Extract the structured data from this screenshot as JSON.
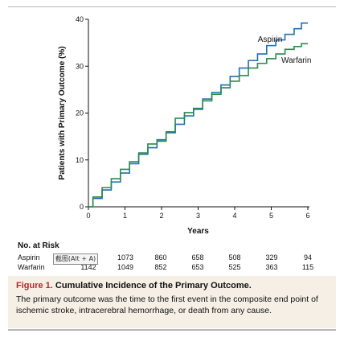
{
  "chart_data": {
    "type": "line",
    "xlabel": "Years",
    "ylabel": "Patients with Primary Outcome (%)",
    "xlim": [
      0,
      6
    ],
    "ylim": [
      0,
      40
    ],
    "x_ticks": [
      0,
      1,
      2,
      3,
      4,
      5,
      6
    ],
    "y_ticks": [
      0,
      10,
      20,
      30,
      40
    ],
    "grid": false,
    "series": [
      {
        "name": "Aspirin",
        "color": "#1f6fb4",
        "x": [
          0,
          0.25,
          0.5,
          0.75,
          1,
          1.25,
          1.5,
          1.75,
          2,
          2.25,
          2.5,
          2.75,
          3,
          3.25,
          3.5,
          3.75,
          4,
          4.25,
          4.5,
          4.75,
          5,
          5.25,
          5.5,
          5.75,
          5.9,
          6
        ],
        "y": [
          0,
          1.8,
          3.6,
          5.3,
          7.2,
          9.2,
          11.2,
          12.6,
          14.3,
          15.8,
          17.6,
          19.4,
          20.8,
          23.0,
          24.4,
          26.0,
          27.8,
          29.6,
          31.2,
          32.6,
          34.4,
          35.6,
          36.8,
          38.0,
          39.2,
          39.2
        ]
      },
      {
        "name": "Warfarin",
        "color": "#2a8a4a",
        "x": [
          0,
          0.25,
          0.5,
          0.75,
          1,
          1.25,
          1.5,
          1.75,
          2,
          2.25,
          2.5,
          2.75,
          3,
          3.25,
          3.5,
          3.75,
          4,
          4.25,
          4.5,
          4.75,
          5,
          5.25,
          5.5,
          5.75,
          5.9,
          6
        ],
        "y": [
          0,
          2.1,
          4.1,
          6.0,
          8.0,
          9.6,
          11.5,
          13.4,
          14.0,
          16.0,
          18.9,
          20.1,
          21.0,
          22.6,
          24.0,
          25.4,
          26.8,
          28.0,
          29.6,
          30.6,
          31.6,
          32.6,
          33.6,
          34.2,
          34.8,
          34.8
        ]
      }
    ]
  },
  "risk_table": {
    "title": "No. at Risk",
    "rows": [
      {
        "name": "Aspirin",
        "values": [
          "",
          "1073",
          "860",
          "658",
          "508",
          "329",
          "94"
        ]
      },
      {
        "name": "Warfarin",
        "values": [
          "1142",
          "1049",
          "852",
          "653",
          "525",
          "363",
          "115"
        ]
      }
    ]
  },
  "overlay": {
    "tooltip": "截图(Alt + A)"
  },
  "caption": {
    "figure_label": "Figure 1.",
    "title": "Cumulative Incidence of the Primary Outcome.",
    "body": "The primary outcome was the time to the first event in the composite end point of ischemic stroke, intracerebral hemorrhage, or death from any cause."
  }
}
